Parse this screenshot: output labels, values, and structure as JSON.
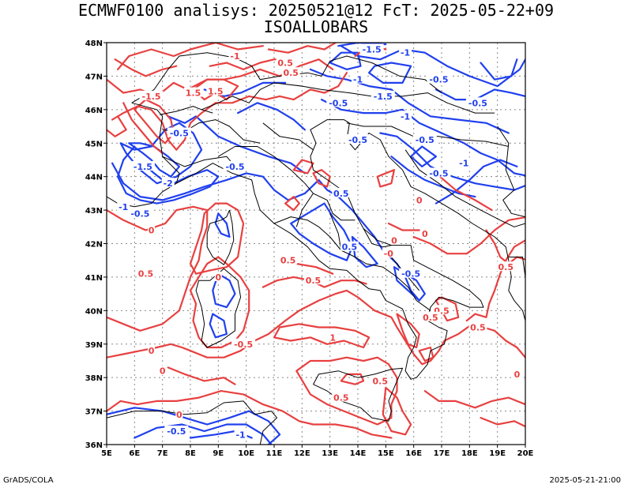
{
  "title_line1": "ECMWF0100 analisys: 20250521@12 FcT: 2025-05-22+09",
  "title_line2": "ISOALLOBARS",
  "footer_left": "GrADS/COLA",
  "footer_right": "2025-05-21-21:00",
  "lon_ticks": [
    "5E",
    "6E",
    "7E",
    "8E",
    "9E",
    "10E",
    "11E",
    "12E",
    "13E",
    "14E",
    "15E",
    "16E",
    "17E",
    "18E",
    "19E",
    "20E"
  ],
  "lat_ticks": [
    "36N",
    "37N",
    "38N",
    "39N",
    "40N",
    "41N",
    "42N",
    "43N",
    "44N",
    "45N",
    "46N",
    "47N",
    "48N"
  ],
  "colors": {
    "positive": "#e84040",
    "negative": "#2040ee",
    "coast": "#000000",
    "grid": "#888888"
  },
  "contour_labels": [
    {
      "text": "-1",
      "sign": "pos",
      "lon": 9.6,
      "lat": 47.6
    },
    {
      "text": "0.5",
      "sign": "pos",
      "lon": 11.4,
      "lat": 47.4
    },
    {
      "text": "0.5",
      "sign": "pos",
      "lon": 11.6,
      "lat": 47.1
    },
    {
      "text": "-1.5",
      "sign": "pos",
      "lon": 6.6,
      "lat": 46.4
    },
    {
      "text": "1.5",
      "sign": "pos",
      "lon": 8.1,
      "lat": 46.5
    },
    {
      "text": "1.5",
      "sign": "pos",
      "lon": 8.9,
      "lat": 46.55
    },
    {
      "text": "-1.5",
      "sign": "neg",
      "lon": 14.5,
      "lat": 47.8
    },
    {
      "text": "-1",
      "sign": "neg",
      "lon": 15.7,
      "lat": 47.7
    },
    {
      "text": "-0.5",
      "sign": "neg",
      "lon": 16.9,
      "lat": 46.9
    },
    {
      "text": "-0.5",
      "sign": "neg",
      "lon": 18.3,
      "lat": 46.2
    },
    {
      "text": "-1",
      "sign": "neg",
      "lon": 14.0,
      "lat": 46.9
    },
    {
      "text": "-1.5",
      "sign": "neg",
      "lon": 14.9,
      "lat": 46.4
    },
    {
      "text": "-0.5",
      "sign": "neg",
      "lon": 13.3,
      "lat": 46.2
    },
    {
      "text": "-1",
      "sign": "neg",
      "lon": 15.7,
      "lat": 45.8
    },
    {
      "text": "-0.5",
      "sign": "neg",
      "lon": 14.0,
      "lat": 45.1
    },
    {
      "text": "-0.5",
      "sign": "neg",
      "lon": 16.4,
      "lat": 45.1
    },
    {
      "text": "-0.5",
      "sign": "neg",
      "lon": 16.9,
      "lat": 44.1
    },
    {
      "text": "-1",
      "sign": "neg",
      "lon": 17.8,
      "lat": 44.4
    },
    {
      "text": "-0.5",
      "sign": "neg",
      "lon": 7.6,
      "lat": 45.3
    },
    {
      "text": "-1.5",
      "sign": "neg",
      "lon": 6.3,
      "lat": 44.3
    },
    {
      "text": "-2",
      "sign": "neg",
      "lon": 7.2,
      "lat": 43.8
    },
    {
      "text": "-0.5",
      "sign": "neg",
      "lon": 9.6,
      "lat": 44.3
    },
    {
      "text": "-1",
      "sign": "neg",
      "lon": 5.6,
      "lat": 43.1
    },
    {
      "text": "-0.5",
      "sign": "neg",
      "lon": 6.2,
      "lat": 42.9
    },
    {
      "text": "0",
      "sign": "pos",
      "lon": 6.6,
      "lat": 42.4
    },
    {
      "text": "0.5",
      "sign": "neg",
      "lon": 13.4,
      "lat": 43.5
    },
    {
      "text": "0.5",
      "sign": "neg",
      "lon": 13.7,
      "lat": 41.9
    },
    {
      "text": "-0",
      "sign": "pos",
      "lon": 15.1,
      "lat": 41.7
    },
    {
      "text": "-0.5",
      "sign": "neg",
      "lon": 15.9,
      "lat": 41.1
    },
    {
      "text": "0",
      "sign": "pos",
      "lon": 15.3,
      "lat": 42.1
    },
    {
      "text": "0",
      "sign": "pos",
      "lon": 16.4,
      "lat": 42.3
    },
    {
      "text": "0.5",
      "sign": "pos",
      "lon": 11.5,
      "lat": 41.5
    },
    {
      "text": "0.5",
      "sign": "pos",
      "lon": 6.4,
      "lat": 41.1
    },
    {
      "text": "0.5",
      "sign": "pos",
      "lon": 12.4,
      "lat": 40.9
    },
    {
      "text": "0",
      "sign": "pos",
      "lon": 9.0,
      "lat": 41.0
    },
    {
      "text": "0.5",
      "sign": "pos",
      "lon": 17.0,
      "lat": 40.0
    },
    {
      "text": "0.5",
      "sign": "pos",
      "lon": 18.3,
      "lat": 39.5
    },
    {
      "text": "0.5",
      "sign": "pos",
      "lon": 19.3,
      "lat": 41.3
    },
    {
      "text": "-0.5",
      "sign": "pos",
      "lon": 9.9,
      "lat": 39.0
    },
    {
      "text": "1",
      "sign": "pos",
      "lon": 13.1,
      "lat": 39.2
    },
    {
      "text": "0",
      "sign": "pos",
      "lon": 7.0,
      "lat": 38.2
    },
    {
      "text": "0",
      "sign": "pos",
      "lon": 6.6,
      "lat": 38.8
    },
    {
      "text": "0.5",
      "sign": "pos",
      "lon": 16.6,
      "lat": 39.8
    },
    {
      "text": "0.5",
      "sign": "pos",
      "lon": 13.4,
      "lat": 37.4
    },
    {
      "text": "0.5",
      "sign": "pos",
      "lon": 14.8,
      "lat": 37.9
    },
    {
      "text": "0",
      "sign": "pos",
      "lon": 7.6,
      "lat": 36.9
    },
    {
      "text": "-0.5",
      "sign": "neg",
      "lon": 7.5,
      "lat": 36.4
    },
    {
      "text": "-1",
      "sign": "neg",
      "lon": 9.8,
      "lat": 36.3
    },
    {
      "text": "0",
      "sign": "pos",
      "lon": 16.2,
      "lat": 43.3
    },
    {
      "text": "0",
      "sign": "pos",
      "lon": 19.7,
      "lat": 38.1
    }
  ]
}
